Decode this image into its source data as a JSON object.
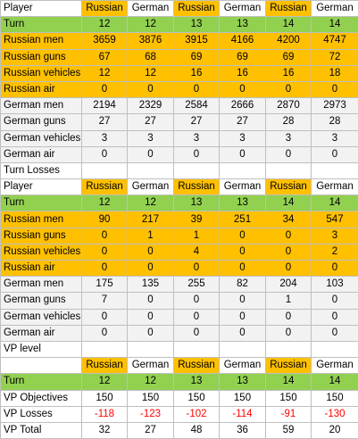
{
  "section1": {
    "header": [
      "Player",
      "Russian",
      "German",
      "Russian",
      "German",
      "Russian",
      "German"
    ],
    "turn": [
      "Turn",
      "12",
      "12",
      "13",
      "13",
      "14",
      "14"
    ],
    "russian_rows": [
      [
        "Russian men",
        "3659",
        "3876",
        "3915",
        "4166",
        "4200",
        "4747"
      ],
      [
        "Russian guns",
        "67",
        "68",
        "69",
        "69",
        "69",
        "72"
      ],
      [
        "Russian vehicles",
        "12",
        "12",
        "16",
        "16",
        "16",
        "18"
      ],
      [
        "Russian air",
        "0",
        "0",
        "0",
        "0",
        "0",
        "0"
      ]
    ],
    "german_rows": [
      [
        "German men",
        "2194",
        "2329",
        "2584",
        "2666",
        "2870",
        "2973"
      ],
      [
        "German guns",
        "27",
        "27",
        "27",
        "27",
        "28",
        "28"
      ],
      [
        "German vehicles",
        "3",
        "3",
        "3",
        "3",
        "3",
        "3"
      ],
      [
        "German air",
        "0",
        "0",
        "0",
        "0",
        "0",
        "0"
      ]
    ]
  },
  "section2": {
    "title": "Turn Losses",
    "header": [
      "Player",
      "Russian",
      "German",
      "Russian",
      "German",
      "Russian",
      "German"
    ],
    "turn": [
      "Turn",
      "12",
      "12",
      "13",
      "13",
      "14",
      "14"
    ],
    "russian_rows": [
      [
        "Russian men",
        "90",
        "217",
        "39",
        "251",
        "34",
        "547"
      ],
      [
        "Russian guns",
        "0",
        "1",
        "1",
        "0",
        "0",
        "3"
      ],
      [
        "Russian vehicles",
        "0",
        "0",
        "4",
        "0",
        "0",
        "2"
      ],
      [
        "Russian air",
        "0",
        "0",
        "0",
        "0",
        "0",
        "0"
      ]
    ],
    "german_rows": [
      [
        "German men",
        "175",
        "135",
        "255",
        "82",
        "204",
        "103"
      ],
      [
        "German guns",
        "7",
        "0",
        "0",
        "0",
        "1",
        "0"
      ],
      [
        "German vehicles",
        "0",
        "0",
        "0",
        "0",
        "0",
        "0"
      ],
      [
        "German air",
        "0",
        "0",
        "0",
        "0",
        "0",
        "0"
      ]
    ]
  },
  "section3": {
    "title": "VP level",
    "header": [
      "",
      "Russian",
      "German",
      "Russian",
      "German",
      "Russian",
      "German"
    ],
    "turn": [
      "Turn",
      "12",
      "12",
      "13",
      "13",
      "14",
      "14"
    ],
    "vp_objectives": [
      "VP Objectives",
      "150",
      "150",
      "150",
      "150",
      "150",
      "150"
    ],
    "vp_losses": [
      "VP Losses",
      "-118",
      "-123",
      "-102",
      "-114",
      "-91",
      "-130"
    ],
    "vp_total": [
      "VP Total",
      "32",
      "27",
      "48",
      "36",
      "59",
      "20"
    ]
  },
  "colors": {
    "russian": "#ffc000",
    "turn": "#92d050",
    "german": "#f2f2f2",
    "negative": "#ff0000"
  }
}
